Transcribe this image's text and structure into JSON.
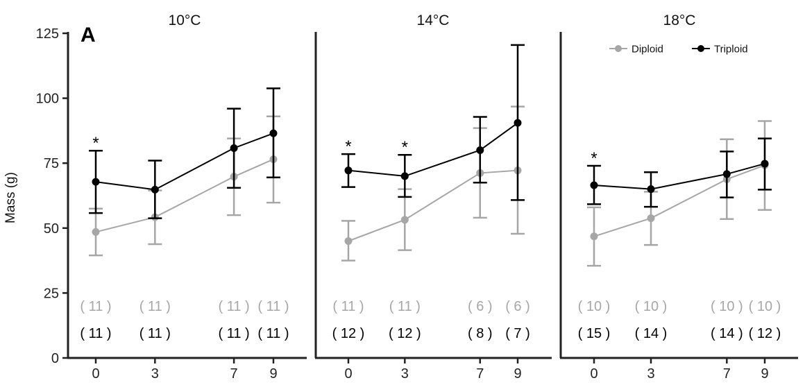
{
  "chart_data": {
    "type": "line",
    "panel_letter": "A",
    "ylabel": "Mass (g)",
    "ylim": [
      0,
      125
    ],
    "yticks": [
      0,
      25,
      50,
      75,
      100,
      125
    ],
    "grid": false,
    "legend_position": "top-right",
    "series_styles": [
      {
        "name": "Diploid",
        "color": "#a6a6a6"
      },
      {
        "name": "Triploid",
        "color": "#000000"
      }
    ],
    "panels": [
      {
        "title": "10°C",
        "x": [
          0,
          3,
          7,
          9
        ],
        "xticks": [
          "0",
          "3",
          "7",
          "9"
        ],
        "series": [
          {
            "name": "Diploid",
            "mean": [
              48.5,
              54.2,
              69.8,
              76.5
            ],
            "lower": [
              39.5,
              43.8,
              55.0,
              59.8
            ],
            "upper": [
              57.5,
              64.5,
              84.5,
              93.0
            ],
            "n_labels": [
              "( 11 )",
              "( 11 )",
              "( 11 )",
              "( 11 )"
            ]
          },
          {
            "name": "Triploid",
            "mean": [
              67.8,
              64.8,
              80.8,
              86.5
            ],
            "lower": [
              55.8,
              53.8,
              65.5,
              69.5
            ],
            "upper": [
              79.8,
              76.0,
              96.0,
              103.8
            ],
            "n_labels": [
              "( 11 )",
              "( 11 )",
              "( 11 )",
              "( 11 )"
            ]
          }
        ],
        "significance": [
          {
            "x": 0,
            "label": "*"
          }
        ]
      },
      {
        "title": "14°C",
        "x": [
          0,
          3,
          7,
          9
        ],
        "xticks": [
          "0",
          "3",
          "7",
          "9"
        ],
        "series": [
          {
            "name": "Diploid",
            "mean": [
              45.0,
              53.2,
              71.2,
              72.2
            ],
            "lower": [
              37.5,
              41.5,
              54.0,
              47.8
            ],
            "upper": [
              52.8,
              65.0,
              88.5,
              96.8
            ],
            "n_labels": [
              "( 11 )",
              "( 11 )",
              "( 6 )",
              "( 6 )"
            ]
          },
          {
            "name": "Triploid",
            "mean": [
              72.2,
              70.0,
              80.0,
              90.5
            ],
            "lower": [
              65.8,
              62.0,
              67.5,
              60.8
            ],
            "upper": [
              78.5,
              78.2,
              92.8,
              120.5
            ],
            "n_labels": [
              "( 12 )",
              "( 12 )",
              "( 8 )",
              "( 7 )"
            ]
          }
        ],
        "significance": [
          {
            "x": 0,
            "label": "*"
          },
          {
            "x": 3,
            "label": "*"
          }
        ]
      },
      {
        "title": "18°C",
        "x": [
          0,
          3,
          7,
          9
        ],
        "xticks": [
          "0",
          "3",
          "7",
          "9"
        ],
        "series": [
          {
            "name": "Diploid",
            "mean": [
              46.8,
              53.8,
              68.8,
              74.2
            ],
            "lower": [
              35.5,
              43.5,
              53.5,
              57.0
            ],
            "upper": [
              58.0,
              64.0,
              84.2,
              91.2
            ],
            "n_labels": [
              "( 10 )",
              "( 10 )",
              "( 10 )",
              "( 10 )"
            ]
          },
          {
            "name": "Triploid",
            "mean": [
              66.5,
              65.0,
              70.8,
              74.8
            ],
            "lower": [
              59.2,
              58.2,
              61.8,
              64.8
            ],
            "upper": [
              74.0,
              71.5,
              79.5,
              84.5
            ],
            "n_labels": [
              "( 15 )",
              "( 14 )",
              "( 14 )",
              "( 12 )"
            ]
          }
        ],
        "significance": [
          {
            "x": 0,
            "label": "*"
          }
        ]
      }
    ]
  }
}
